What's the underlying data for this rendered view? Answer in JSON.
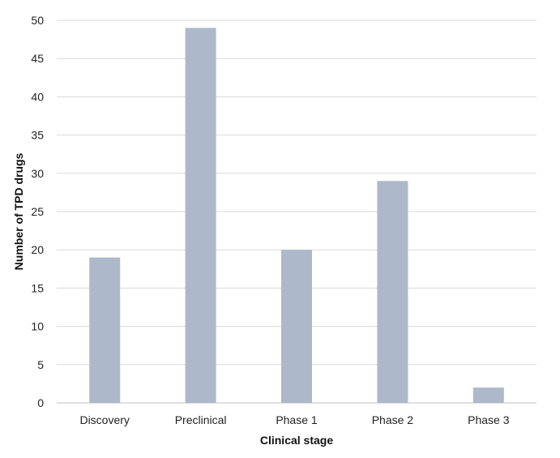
{
  "chart_data": {
    "type": "bar",
    "title": "",
    "xlabel": "Clinical stage",
    "ylabel": "Number of TPD drugs",
    "categories": [
      "Discovery",
      "Preclinical",
      "Phase 1",
      "Phase 2",
      "Phase 3"
    ],
    "values": [
      19,
      49,
      20,
      29,
      2
    ],
    "ylim": [
      0,
      50
    ],
    "yticks": [
      0,
      5,
      10,
      15,
      20,
      25,
      30,
      35,
      40,
      45,
      50
    ],
    "grid": true,
    "legend": "none",
    "bar_color": "#adb9ca",
    "grid_color": "#d9d9d9"
  }
}
